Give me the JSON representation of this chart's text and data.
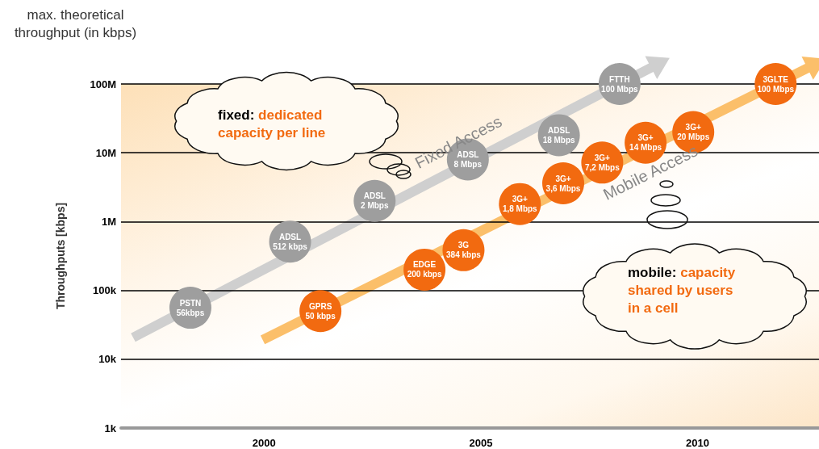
{
  "chart_data": {
    "type": "scatter",
    "title": "max. theoretical throughput (in kbps)",
    "ylabel": "Throughputs [kbps]",
    "series": [
      {
        "name": "Fixed Access",
        "color": "#9e9e9e",
        "x": [
          1998.3,
          2000.6,
          2002.55,
          2004.7,
          2006.8,
          2008.2
        ],
        "values": [
          56000,
          512000,
          2000000,
          8000000,
          18000000,
          100000000
        ],
        "value_labels": [
          "PSTN\n56kbps",
          "ADSL\n512 kbps",
          "ADSL\n2 Mbps",
          "ADSL\n8 Mbps",
          "ADSL\n18 Mbps",
          "FTTH\n100 Mbps"
        ]
      },
      {
        "name": "Mobile Access",
        "color": "#f26a10",
        "x": [
          2001.3,
          2003.7,
          2004.6,
          2005.9,
          2006.9,
          2007.8,
          2008.8,
          2009.9,
          2011.8
        ],
        "values": [
          50000,
          200000,
          384000,
          1800000,
          3600000,
          7200000,
          14000000,
          20000000,
          100000000
        ],
        "value_labels": [
          "GPRS\n50 kbps",
          "EDGE\n200 kbps",
          "3G\n384 kbps",
          "3G+\n1,8 Mbps",
          "3G+\n3,6 Mbps",
          "3G+\n7,2 Mbps",
          "3G+\n14 Mbps",
          "3G+\n20 Mbps",
          "3GLTE\n100 Mbps"
        ]
      }
    ],
    "annotations": [
      "fixed: dedicated capacity per line",
      "mobile: capacity shared by users in a cell"
    ],
    "xlim": [
      1996.7,
      2012.8
    ],
    "xticks": [
      2000,
      2005,
      2010
    ],
    "ylim": [
      1000,
      100000000
    ],
    "yticks": [
      {
        "value": 1000,
        "label": "1k"
      },
      {
        "value": 10000,
        "label": "10k"
      },
      {
        "value": 100000,
        "label": "100k"
      },
      {
        "value": 1000000,
        "label": "1M"
      },
      {
        "value": 10000000,
        "label": "10M"
      },
      {
        "value": 100000000,
        "label": "100M"
      }
    ],
    "log": "y",
    "grid": "y",
    "marker": "circle"
  }
}
